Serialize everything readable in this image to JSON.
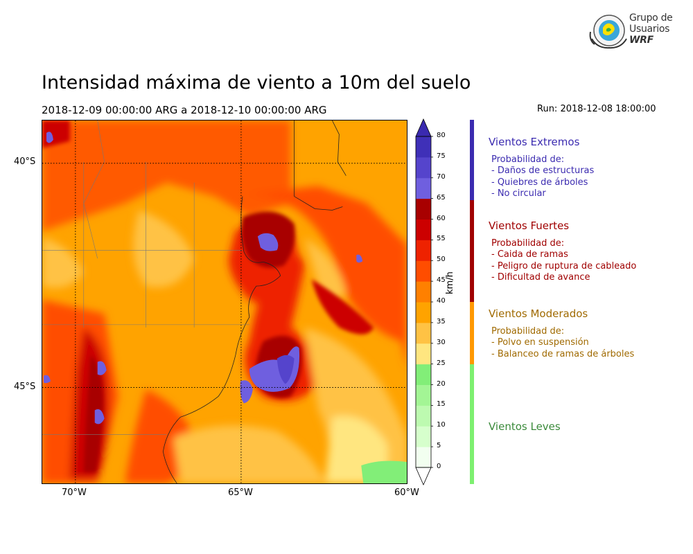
{
  "header": {
    "title": "Intensidad máxima de viento a 10m del suelo",
    "period": "2018-12-09 00:00:00 ARG  a  2018-12-10 00:00:00 ARG",
    "run": "Run: 2018-12-08 18:00:00"
  },
  "logo": {
    "line1": "Grupo de",
    "line2": "Usuarios",
    "line3": "WRF"
  },
  "map": {
    "lat_labels": [
      "40°S",
      "45°S"
    ],
    "lon_labels": [
      "70°W",
      "65°W",
      "60°W"
    ],
    "lat_range": [
      -47.1,
      -39.1
    ],
    "lon_range": [
      -71.0,
      -60.0
    ]
  },
  "colorbar": {
    "unit": "km/h",
    "ticks": [
      "0",
      "5",
      "10",
      "15",
      "20",
      "25",
      "30",
      "35",
      "40",
      "45",
      "50",
      "55",
      "60",
      "65",
      "70",
      "75",
      "80"
    ],
    "colors": [
      "#f2fff0",
      "#d6ffcc",
      "#bdfab0",
      "#a3f595",
      "#82ee78",
      "#ffe680",
      "#ffc244",
      "#ffa300",
      "#ff8000",
      "#ff4d00",
      "#ee2200",
      "#cc0000",
      "#a80000",
      "#6f5fdf",
      "#5544cc",
      "#3f30b8"
    ],
    "extend_low": "#ffffff",
    "extend_high": "#3a2ab0"
  },
  "legend": {
    "extremos": {
      "title": "Vientos Extremos",
      "color": "#3b2bb0",
      "lines": [
        "Probabilidad de:",
        "- Daños de estructuras",
        "- Quiebres de árboles",
        "- No circular"
      ]
    },
    "fuertes": {
      "title": "Vientos Fuertes",
      "color": "#a00000",
      "lines": [
        "Probabilidad de:",
        "- Caida de ramas",
        "- Peligro de ruptura de cableado",
        "- Dificultad de avance"
      ]
    },
    "moderados": {
      "title": "Vientos Moderados",
      "color": "#a06a00",
      "lines": [
        "Probabilidad de:",
        "- Polvo en suspensión",
        "- Balanceo de ramas de árboles"
      ]
    },
    "leves": {
      "title": "Vientos Leves",
      "color": "#3a8a3a"
    }
  }
}
